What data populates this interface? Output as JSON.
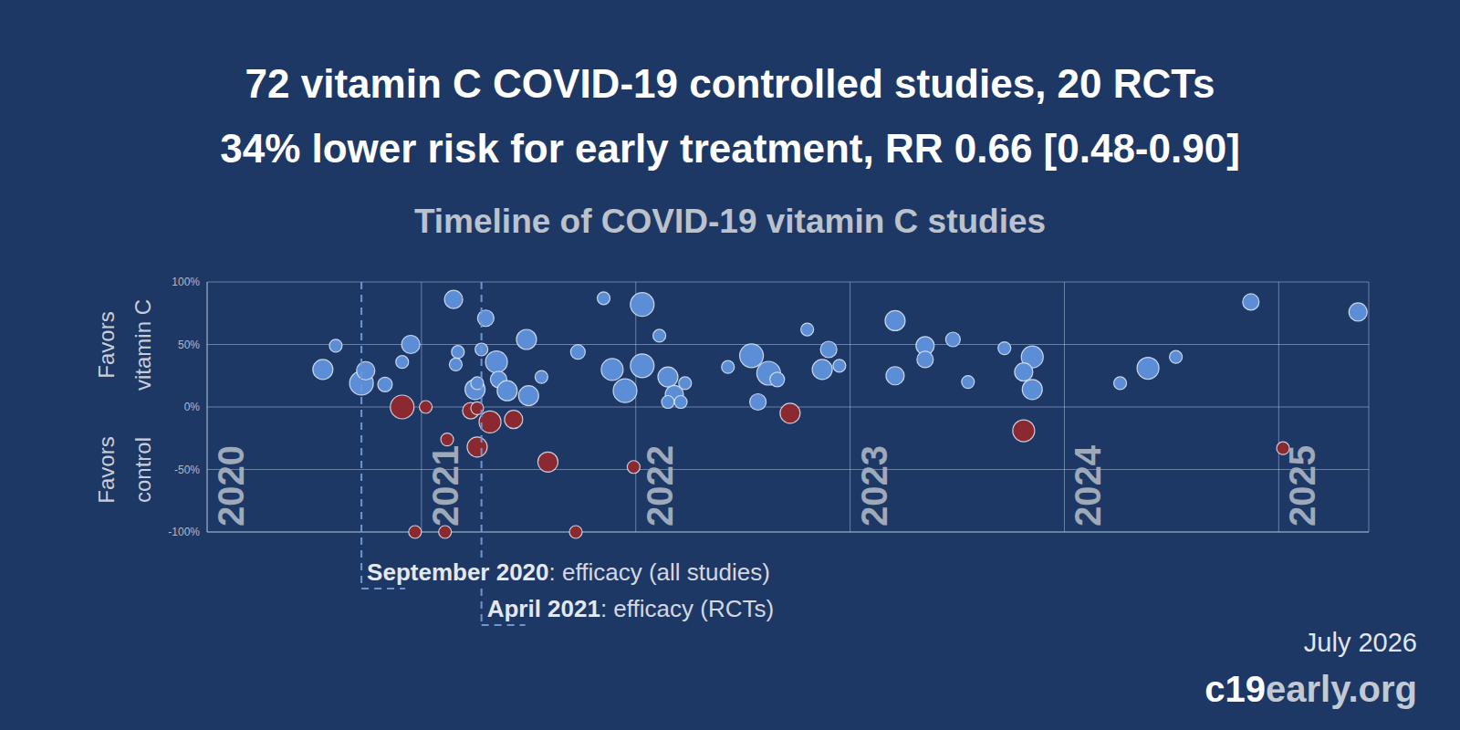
{
  "chart_data": {
    "type": "scatter",
    "title": [
      "72 vitamin C COVID-19 controlled studies, 20 RCTs",
      "34% lower risk for early treatment, RR 0.66 [0.48-0.90]"
    ],
    "subtitle": "Timeline of COVID-19 vitamin C studies",
    "ylabel": {
      "top": "Favors vitamin C",
      "bottom": "Favors control"
    },
    "xlim": [
      2020,
      2025.42
    ],
    "xticks": [
      2020,
      2021,
      2022,
      2023,
      2024,
      2025
    ],
    "ylim": [
      -100,
      100
    ],
    "yticks": [
      {
        "value": -100,
        "label": "-100%"
      },
      {
        "value": -50,
        "label": "-50%"
      },
      {
        "value": 0,
        "label": "0%"
      },
      {
        "value": 50,
        "label": "50%"
      },
      {
        "value": 100,
        "label": "100%"
      }
    ],
    "grid": true,
    "annotations": [
      {
        "x": 2020.72,
        "bold": "September 2020",
        "text": ": efficacy (all studies)"
      },
      {
        "x": 2021.28,
        "bold": "April 2021",
        "text": ": efficacy (RCTs)"
      }
    ],
    "date": "July 2026",
    "source": "c19early.org",
    "series": [
      {
        "color": "#5b8ed6",
        "x": [
          2020.54,
          2020.6,
          2020.72,
          2020.74,
          2020.83,
          2020.91,
          2020.95,
          2021.15,
          2021.17,
          2021.16,
          2021.28,
          2021.3,
          2021.25,
          2021.26,
          2021.35,
          2021.36,
          2021.4,
          2021.49,
          2021.5,
          2021.56,
          2021.73,
          2021.85,
          2021.89,
          2021.95,
          2022.03,
          2022.03,
          2022.11,
          2022.15,
          2022.18,
          2022.15,
          2022.21,
          2022.23,
          2022.43,
          2022.54,
          2022.62,
          2022.66,
          2022.57,
          2022.8,
          2022.9,
          2022.87,
          2022.95,
          2023.21,
          2023.21,
          2023.35,
          2023.35,
          2023.48,
          2023.55,
          2023.72,
          2023.85,
          2023.81,
          2023.85,
          2024.26,
          2024.39,
          2024.52,
          2024.87,
          2025.37
        ],
        "y": [
          30,
          49,
          19,
          29,
          18,
          36,
          50,
          86,
          44,
          34,
          46,
          71,
          14,
          19,
          36,
          22,
          13,
          54,
          9,
          24,
          44,
          87,
          30,
          13,
          82,
          33,
          57,
          24,
          10,
          4,
          4,
          19,
          32,
          41,
          27,
          22,
          4,
          62,
          46,
          30,
          33,
          69,
          25,
          49,
          38,
          54,
          20,
          47,
          40,
          28,
          14,
          19,
          31,
          40,
          84,
          76
        ],
        "size": [
          11,
          7,
          13,
          10,
          8,
          7,
          10,
          10,
          7,
          7,
          7,
          9,
          11,
          7,
          12,
          9,
          11,
          11,
          11,
          7,
          8,
          7,
          12,
          13,
          13,
          13,
          7,
          11,
          10,
          7,
          7,
          7,
          7,
          13,
          13,
          8,
          9,
          7,
          9,
          11,
          7,
          11,
          10,
          10,
          9,
          8,
          7,
          7,
          12,
          10,
          11,
          7,
          12,
          7,
          9,
          10
        ]
      },
      {
        "color": "#8a2a30",
        "x": [
          2020.91,
          2021.02,
          2020.97,
          2021.12,
          2021.11,
          2021.23,
          2021.26,
          2021.32,
          2021.43,
          2021.26,
          2021.59,
          2021.72,
          2021.99,
          2022.72,
          2023.81,
          2025.02
        ],
        "y": [
          0,
          0,
          -100,
          -26,
          -100,
          -3,
          -1,
          -12,
          -10,
          -32,
          -44,
          -100,
          -48,
          -5,
          -19,
          -33
        ],
        "size": [
          13,
          7,
          7,
          7,
          7,
          9,
          7,
          12,
          10,
          11,
          11,
          7,
          7,
          11,
          12,
          7
        ]
      }
    ]
  }
}
